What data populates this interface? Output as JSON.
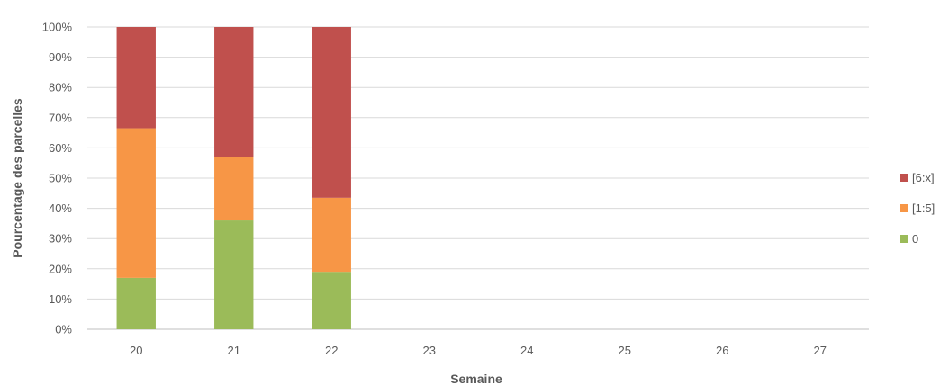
{
  "chart_data": {
    "type": "bar",
    "stacked": true,
    "normalized_percent": true,
    "categories": [
      "20",
      "21",
      "22",
      "23",
      "24",
      "25",
      "26",
      "27"
    ],
    "series": [
      {
        "name": "0",
        "color": "#9BBB59",
        "values": [
          17,
          36,
          19,
          null,
          null,
          null,
          null,
          null
        ]
      },
      {
        "name": "[1:5]",
        "color": "#F79646",
        "values": [
          49.5,
          21,
          24.5,
          null,
          null,
          null,
          null,
          null
        ]
      },
      {
        "name": "[6:x]",
        "color": "#C0504D",
        "values": [
          33.5,
          43,
          56.5,
          null,
          null,
          null,
          null,
          null
        ]
      }
    ],
    "xlabel": "Semaine",
    "ylabel": "Pourcentage des parcelles",
    "ylim": [
      0,
      100
    ],
    "yticks": [
      "0%",
      "10%",
      "20%",
      "30%",
      "40%",
      "50%",
      "60%",
      "70%",
      "80%",
      "90%",
      "100%"
    ],
    "grid": true,
    "legend_position": "right"
  },
  "legend": [
    {
      "label": "[6:x]",
      "color": "#C0504D"
    },
    {
      "label": "[1:5]",
      "color": "#F79646"
    },
    {
      "label": "0",
      "color": "#9BBB59"
    }
  ]
}
